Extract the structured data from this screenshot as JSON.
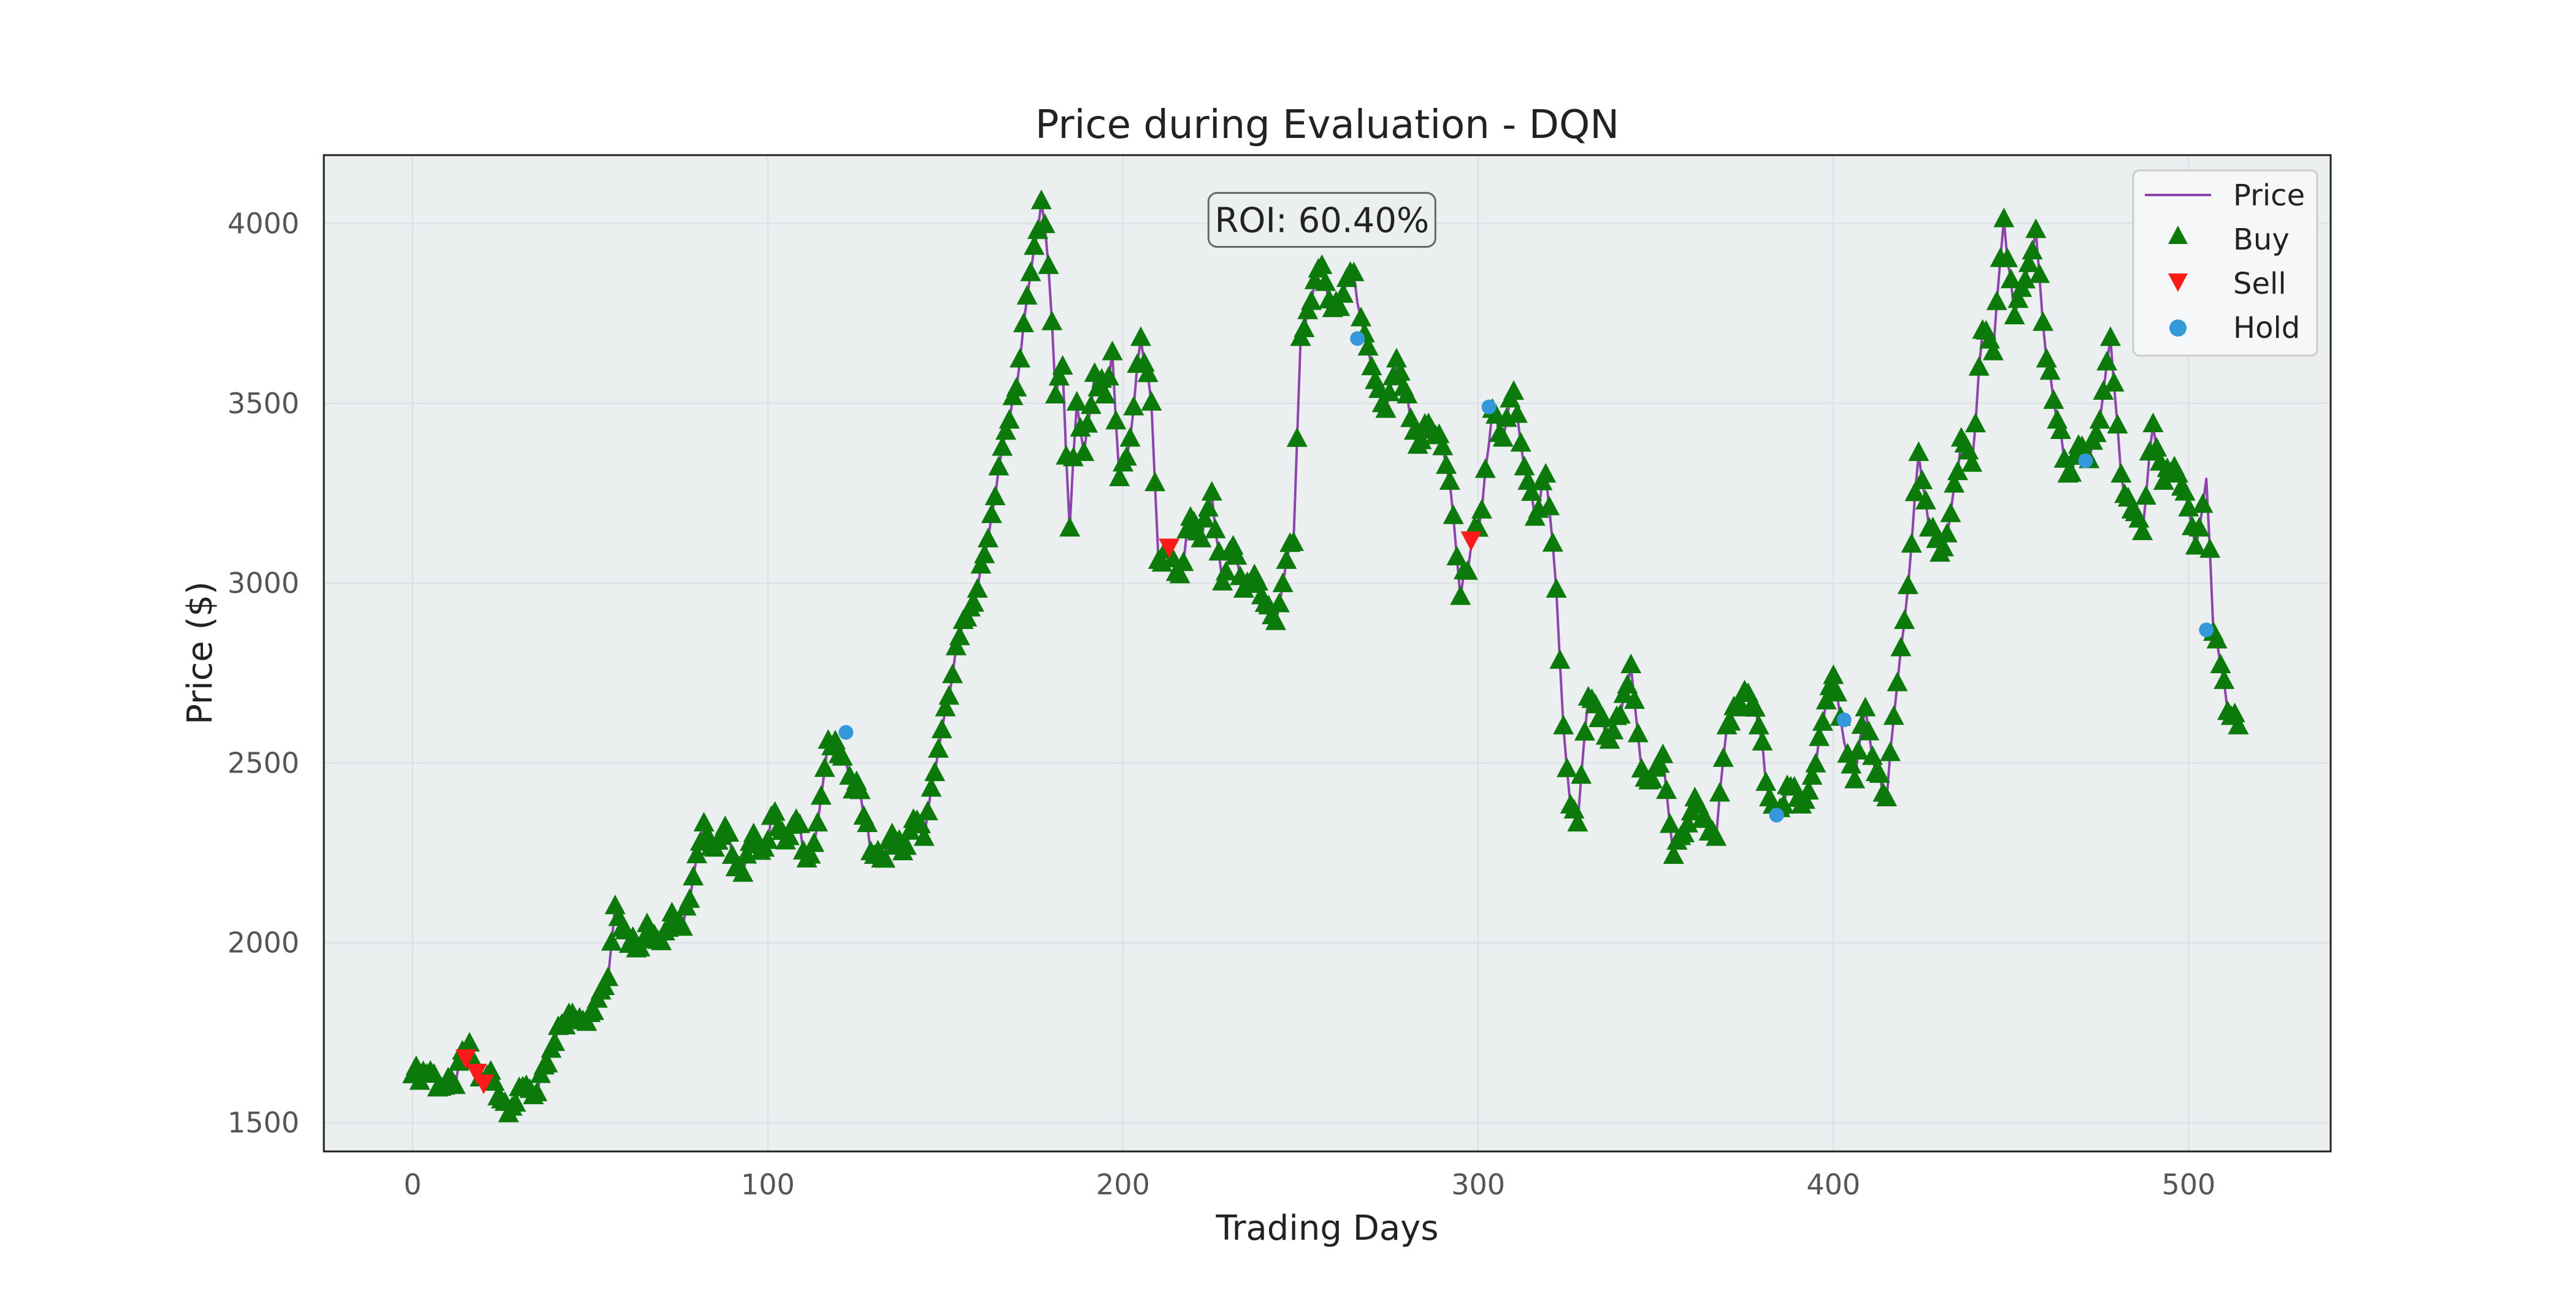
{
  "chart_data": {
    "type": "line",
    "title": "Price during Evaluation - DQN",
    "xlabel": "Trading Days",
    "ylabel": "Price ($)",
    "xlim": [
      -25,
      540
    ],
    "ylim": [
      1420,
      4190
    ],
    "xticks": [
      0,
      100,
      200,
      300,
      400,
      500
    ],
    "yticks": [
      1500,
      2000,
      2500,
      3000,
      3500,
      4000
    ],
    "grid": true,
    "legend_position": "top-right",
    "annotation": {
      "text": "ROI: 60.40%",
      "x": 256,
      "y": 4010
    },
    "colors": {
      "price": "#8e44ad",
      "buy": "#0b7a0b",
      "sell": "#ff1a1a",
      "hold": "#3498db",
      "plot_bg": "#eceff0"
    },
    "price_keypoints": [
      [
        0,
        1630
      ],
      [
        5,
        1640
      ],
      [
        8,
        1595
      ],
      [
        12,
        1600
      ],
      [
        15,
        1720
      ],
      [
        18,
        1650
      ],
      [
        20,
        1610
      ],
      [
        22,
        1640
      ],
      [
        25,
        1560
      ],
      [
        28,
        1540
      ],
      [
        32,
        1600
      ],
      [
        35,
        1580
      ],
      [
        38,
        1660
      ],
      [
        42,
        1770
      ],
      [
        45,
        1800
      ],
      [
        48,
        1780
      ],
      [
        52,
        1840
      ],
      [
        55,
        1900
      ],
      [
        57,
        2100
      ],
      [
        60,
        2030
      ],
      [
        63,
        1980
      ],
      [
        66,
        2050
      ],
      [
        70,
        2000
      ],
      [
        73,
        2080
      ],
      [
        76,
        2040
      ],
      [
        79,
        2180
      ],
      [
        82,
        2330
      ],
      [
        85,
        2260
      ],
      [
        88,
        2320
      ],
      [
        90,
        2240
      ],
      [
        93,
        2190
      ],
      [
        96,
        2300
      ],
      [
        99,
        2260
      ],
      [
        102,
        2360
      ],
      [
        105,
        2280
      ],
      [
        108,
        2340
      ],
      [
        111,
        2230
      ],
      [
        114,
        2330
      ],
      [
        117,
        2560
      ],
      [
        120,
        2520
      ],
      [
        123,
        2460
      ],
      [
        126,
        2420
      ],
      [
        129,
        2250
      ],
      [
        132,
        2230
      ],
      [
        135,
        2300
      ],
      [
        138,
        2250
      ],
      [
        141,
        2340
      ],
      [
        144,
        2290
      ],
      [
        147,
        2470
      ],
      [
        150,
        2650
      ],
      [
        153,
        2820
      ],
      [
        156,
        2900
      ],
      [
        159,
        2980
      ],
      [
        162,
        3120
      ],
      [
        165,
        3320
      ],
      [
        168,
        3450
      ],
      [
        171,
        3620
      ],
      [
        174,
        3860
      ],
      [
        177,
        4060
      ],
      [
        179,
        3880
      ],
      [
        181,
        3520
      ],
      [
        183,
        3600
      ],
      [
        185,
        3150
      ],
      [
        187,
        3500
      ],
      [
        189,
        3360
      ],
      [
        192,
        3580
      ],
      [
        195,
        3520
      ],
      [
        197,
        3640
      ],
      [
        199,
        3290
      ],
      [
        202,
        3400
      ],
      [
        205,
        3680
      ],
      [
        208,
        3500
      ],
      [
        210,
        3060
      ],
      [
        213,
        3080
      ],
      [
        216,
        3020
      ],
      [
        219,
        3180
      ],
      [
        222,
        3120
      ],
      [
        225,
        3250
      ],
      [
        228,
        3000
      ],
      [
        231,
        3100
      ],
      [
        234,
        2980
      ],
      [
        237,
        3020
      ],
      [
        240,
        2940
      ],
      [
        243,
        2890
      ],
      [
        246,
        3060
      ],
      [
        248,
        3110
      ],
      [
        250,
        3680
      ],
      [
        253,
        3780
      ],
      [
        256,
        3880
      ],
      [
        259,
        3760
      ],
      [
        262,
        3800
      ],
      [
        265,
        3860
      ],
      [
        268,
        3690
      ],
      [
        271,
        3560
      ],
      [
        274,
        3480
      ],
      [
        277,
        3620
      ],
      [
        280,
        3520
      ],
      [
        283,
        3380
      ],
      [
        286,
        3440
      ],
      [
        289,
        3410
      ],
      [
        292,
        3280
      ],
      [
        295,
        2960
      ],
      [
        298,
        3100
      ],
      [
        301,
        3200
      ],
      [
        304,
        3480
      ],
      [
        307,
        3400
      ],
      [
        310,
        3530
      ],
      [
        313,
        3320
      ],
      [
        316,
        3180
      ],
      [
        319,
        3300
      ],
      [
        322,
        2980
      ],
      [
        324,
        2600
      ],
      [
        326,
        2380
      ],
      [
        328,
        2330
      ],
      [
        331,
        2680
      ],
      [
        334,
        2620
      ],
      [
        337,
        2560
      ],
      [
        340,
        2630
      ],
      [
        343,
        2770
      ],
      [
        346,
        2480
      ],
      [
        349,
        2450
      ],
      [
        352,
        2520
      ],
      [
        355,
        2240
      ],
      [
        358,
        2300
      ],
      [
        361,
        2400
      ],
      [
        364,
        2340
      ],
      [
        367,
        2290
      ],
      [
        370,
        2600
      ],
      [
        373,
        2650
      ],
      [
        376,
        2690
      ],
      [
        379,
        2600
      ],
      [
        382,
        2400
      ],
      [
        385,
        2370
      ],
      [
        388,
        2430
      ],
      [
        391,
        2380
      ],
      [
        394,
        2460
      ],
      [
        397,
        2610
      ],
      [
        400,
        2740
      ],
      [
        403,
        2560
      ],
      [
        406,
        2450
      ],
      [
        409,
        2650
      ],
      [
        412,
        2470
      ],
      [
        415,
        2400
      ],
      [
        418,
        2720
      ],
      [
        421,
        2990
      ],
      [
        424,
        3360
      ],
      [
        427,
        3150
      ],
      [
        430,
        3080
      ],
      [
        433,
        3190
      ],
      [
        436,
        3400
      ],
      [
        439,
        3330
      ],
      [
        442,
        3700
      ],
      [
        445,
        3640
      ],
      [
        448,
        4010
      ],
      [
        451,
        3740
      ],
      [
        454,
        3840
      ],
      [
        457,
        3980
      ],
      [
        460,
        3620
      ],
      [
        463,
        3450
      ],
      [
        466,
        3300
      ],
      [
        469,
        3380
      ],
      [
        472,
        3340
      ],
      [
        475,
        3450
      ],
      [
        478,
        3680
      ],
      [
        481,
        3300
      ],
      [
        484,
        3200
      ],
      [
        487,
        3140
      ],
      [
        490,
        3440
      ],
      [
        493,
        3280
      ],
      [
        496,
        3320
      ],
      [
        499,
        3250
      ],
      [
        502,
        3100
      ],
      [
        505,
        3290
      ],
      [
        507,
        2860
      ],
      [
        509,
        2770
      ],
      [
        511,
        2640
      ],
      [
        514,
        2600
      ]
    ],
    "sell_points": [
      [
        15,
        1680
      ],
      [
        18,
        1640
      ],
      [
        20,
        1610
      ],
      [
        213,
        3100
      ],
      [
        298,
        3120
      ]
    ],
    "hold_points": [
      [
        122,
        2585
      ],
      [
        266,
        3680
      ],
      [
        303,
        3490
      ],
      [
        384,
        2355
      ],
      [
        403,
        2620
      ],
      [
        471,
        3340
      ],
      [
        505,
        2870
      ]
    ],
    "legend": [
      {
        "key": "price",
        "label": "Price"
      },
      {
        "key": "buy",
        "label": "Buy"
      },
      {
        "key": "sell",
        "label": "Sell"
      },
      {
        "key": "hold",
        "label": "Hold"
      }
    ]
  }
}
